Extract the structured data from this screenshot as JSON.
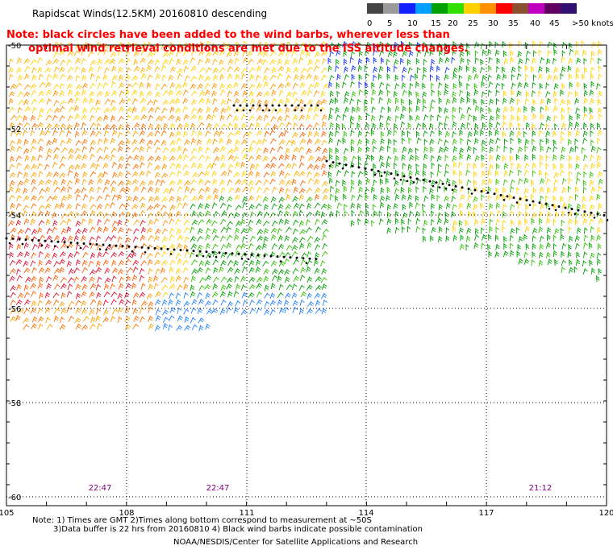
{
  "title": "Rapidscat Winds(12.5KM) 20160810 descending",
  "note_lines": [
    "Note: black circles have been added to the wind barbs, wherever less than",
    "      optimal wind retrieval conditions are met due to the ISS altitude changes."
  ],
  "legend": {
    "labels": [
      "0",
      "5",
      "10",
      "15",
      "20",
      "25",
      "30",
      "35",
      "40",
      "45",
      ">50 knots"
    ],
    "colors": [
      "#444444",
      "#9a9a9a",
      "#1020ff",
      "#00a0ff",
      "#00a000",
      "#30e000",
      "#ffd000",
      "#ff9000",
      "#ff0000",
      "#8a5030",
      "#c000c0",
      "#600060",
      "#301070"
    ]
  },
  "map": {
    "lat_labels": [
      "-50",
      "-52",
      "-54",
      "-56",
      "-58",
      "-60"
    ],
    "lon_labels": [
      "105",
      "108",
      "111",
      "114",
      "117",
      "120"
    ],
    "time_labels": [
      "22:47",
      "22:47",
      "21:12"
    ],
    "time_color": "#800080"
  },
  "footer": {
    "line1": "Note: 1) Times are GMT 2)Times along bottom correspond to measurement at ~50S",
    "line2": "3)Data buffer is 22 hrs from 20160810 4) Black wind barbs indicate possible contamination",
    "credit": "NOAA/NESDIS/Center for Satellite Applications and Research"
  }
}
